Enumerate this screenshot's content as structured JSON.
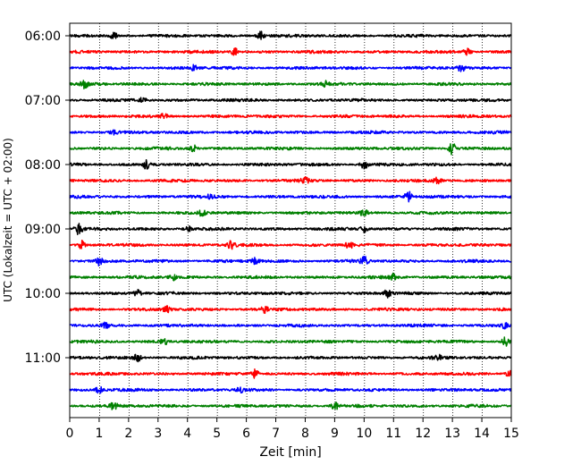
{
  "chart_data": {
    "type": "line",
    "title": "",
    "xlabel": "Zeit  [min]",
    "ylabel": "UTC (Lokalzeit = UTC + 02:00)",
    "xlim": [
      0,
      15
    ],
    "x_ticks": [
      0,
      1,
      2,
      3,
      4,
      5,
      6,
      7,
      8,
      9,
      10,
      11,
      12,
      13,
      14,
      15
    ],
    "y_ticks": [
      {
        "label": "06:00",
        "trace": 0
      },
      {
        "label": "07:00",
        "trace": 4
      },
      {
        "label": "08:00",
        "trace": 8
      },
      {
        "label": "09:00",
        "trace": 12
      },
      {
        "label": "10:00",
        "trace": 16
      },
      {
        "label": "11:00",
        "trace": 20
      }
    ],
    "grid_x": "dotted",
    "trace_interval_min": 15,
    "trace_colors": [
      "#000000",
      "#ff0000",
      "#0000ff",
      "#008000"
    ],
    "traces": [
      {
        "start": "06:00",
        "color": "#000000",
        "events": [
          [
            1.5,
            1.2
          ],
          [
            6.5,
            1.4
          ]
        ]
      },
      {
        "start": "06:15",
        "color": "#ff0000",
        "events": [
          [
            5.6,
            1.5
          ],
          [
            13.5,
            1.2
          ]
        ]
      },
      {
        "start": "06:30",
        "color": "#0000ff",
        "events": [
          [
            4.2,
            1.3
          ],
          [
            13.3,
            1.1
          ]
        ]
      },
      {
        "start": "06:45",
        "color": "#008000",
        "events": [
          [
            0.5,
            1.3
          ],
          [
            8.7,
            1.0
          ]
        ]
      },
      {
        "start": "07:00",
        "color": "#000000",
        "events": [
          [
            2.5,
            0.9
          ]
        ]
      },
      {
        "start": "07:15",
        "color": "#ff0000",
        "events": [
          [
            3.2,
            0.8
          ]
        ]
      },
      {
        "start": "07:30",
        "color": "#0000ff",
        "events": [
          [
            1.5,
            0.8
          ]
        ]
      },
      {
        "start": "07:45",
        "color": "#008000",
        "events": [
          [
            4.2,
            1.2
          ],
          [
            13.0,
            2.2
          ]
        ]
      },
      {
        "start": "08:00",
        "color": "#000000",
        "events": [
          [
            2.6,
            1.3
          ],
          [
            10.0,
            1.5
          ]
        ]
      },
      {
        "start": "08:15",
        "color": "#ff0000",
        "events": [
          [
            8.0,
            1.2
          ],
          [
            12.5,
            1.3
          ]
        ]
      },
      {
        "start": "08:30",
        "color": "#0000ff",
        "events": [
          [
            4.8,
            1.0
          ],
          [
            11.5,
            1.8
          ]
        ]
      },
      {
        "start": "08:45",
        "color": "#008000",
        "events": [
          [
            4.5,
            1.1
          ],
          [
            10.0,
            1.1
          ]
        ]
      },
      {
        "start": "09:00",
        "color": "#000000",
        "events": [
          [
            0.3,
            1.9
          ],
          [
            4.0,
            1.3
          ],
          [
            10.0,
            1.2
          ]
        ]
      },
      {
        "start": "09:15",
        "color": "#ff0000",
        "events": [
          [
            0.4,
            1.5
          ],
          [
            5.5,
            1.6
          ],
          [
            9.5,
            1.2
          ]
        ]
      },
      {
        "start": "09:30",
        "color": "#0000ff",
        "events": [
          [
            1.0,
            1.4
          ],
          [
            6.3,
            1.3
          ],
          [
            10.0,
            1.5
          ]
        ]
      },
      {
        "start": "09:45",
        "color": "#008000",
        "events": [
          [
            3.5,
            1.0
          ],
          [
            11.0,
            1.0
          ]
        ]
      },
      {
        "start": "10:00",
        "color": "#000000",
        "events": [
          [
            2.3,
            1.1
          ],
          [
            10.8,
            1.4
          ]
        ]
      },
      {
        "start": "10:15",
        "color": "#ff0000",
        "events": [
          [
            3.3,
            1.0
          ],
          [
            6.6,
            1.0
          ]
        ]
      },
      {
        "start": "10:30",
        "color": "#0000ff",
        "events": [
          [
            1.2,
            1.2
          ],
          [
            14.8,
            1.1
          ]
        ]
      },
      {
        "start": "10:45",
        "color": "#008000",
        "events": [
          [
            3.2,
            1.1
          ],
          [
            14.8,
            1.6
          ]
        ]
      },
      {
        "start": "11:00",
        "color": "#000000",
        "events": [
          [
            2.3,
            1.2
          ],
          [
            12.5,
            1.1
          ]
        ]
      },
      {
        "start": "11:15",
        "color": "#ff0000",
        "events": [
          [
            6.3,
            1.5
          ],
          [
            14.9,
            1.2
          ]
        ]
      },
      {
        "start": "11:30",
        "color": "#0000ff",
        "events": [
          [
            1.0,
            1.1
          ],
          [
            5.8,
            1.2
          ]
        ]
      },
      {
        "start": "11:45",
        "color": "#008000",
        "events": [
          [
            1.5,
            1.1
          ],
          [
            9.0,
            1.4
          ]
        ]
      }
    ]
  }
}
